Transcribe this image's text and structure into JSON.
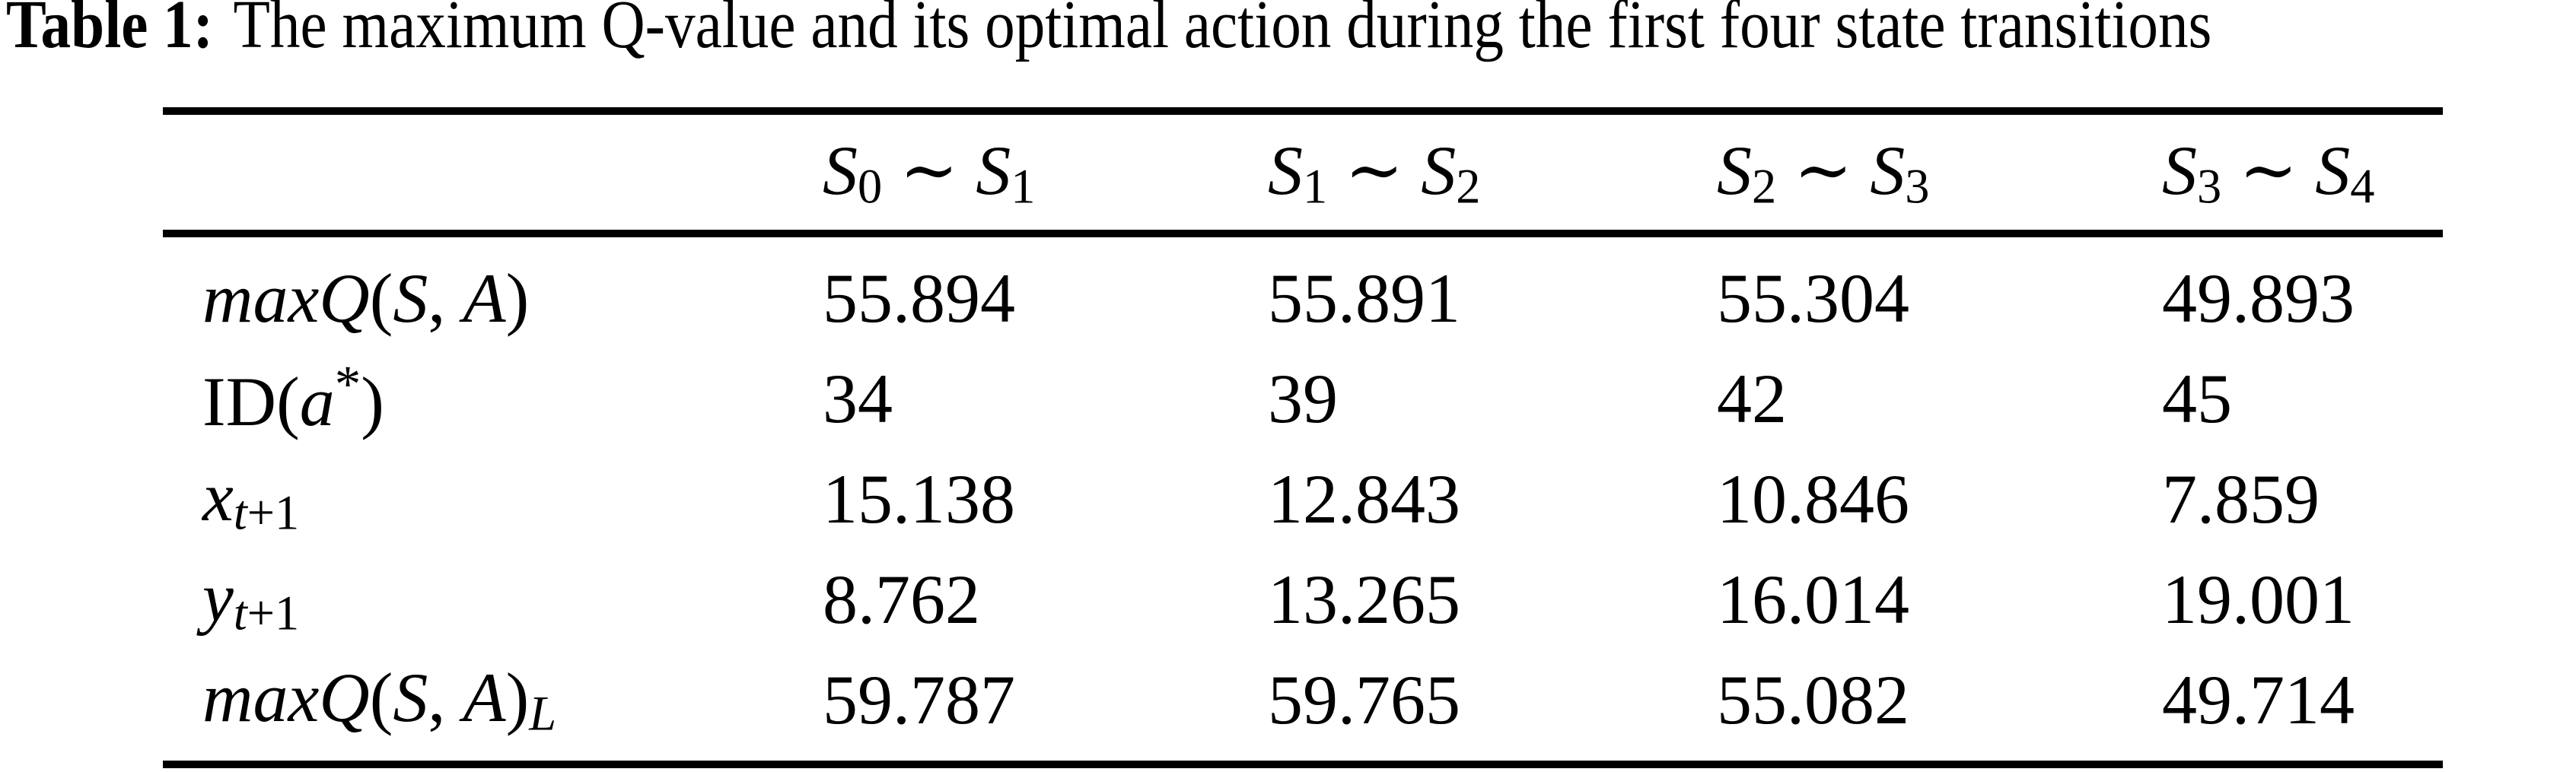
{
  "colors": {
    "text": "#000000",
    "background": "#ffffff",
    "rule": "#000000"
  },
  "caption": {
    "label": "Table 1:",
    "text": "The maximum Q-value and its optimal action during the first four state transitions"
  },
  "table": {
    "corner": "",
    "headers": [
      {
        "segments": [
          {
            "t": "S",
            "i": true
          },
          {
            "t": "0",
            "sub": true
          },
          {
            "t": " ∼ "
          },
          {
            "t": "S",
            "i": true
          },
          {
            "t": "1",
            "sub": true
          }
        ]
      },
      {
        "segments": [
          {
            "t": "S",
            "i": true
          },
          {
            "t": "1",
            "sub": true
          },
          {
            "t": " ∼ "
          },
          {
            "t": "S",
            "i": true
          },
          {
            "t": "2",
            "sub": true
          }
        ]
      },
      {
        "segments": [
          {
            "t": "S",
            "i": true
          },
          {
            "t": "2",
            "sub": true
          },
          {
            "t": " ∼ "
          },
          {
            "t": "S",
            "i": true
          },
          {
            "t": "3",
            "sub": true
          }
        ]
      },
      {
        "segments": [
          {
            "t": "S",
            "i": true
          },
          {
            "t": "3",
            "sub": true
          },
          {
            "t": " ∼ "
          },
          {
            "t": "S",
            "i": true
          },
          {
            "t": "4",
            "sub": true
          }
        ]
      }
    ],
    "rows": [
      {
        "segments": [
          {
            "t": "maxQ",
            "i": true
          },
          {
            "t": "("
          },
          {
            "t": "S",
            "i": true
          },
          {
            "t": ", "
          },
          {
            "t": "A",
            "i": true
          },
          {
            "t": ")"
          }
        ],
        "values": [
          "55.894",
          "55.891",
          "55.304",
          "49.893"
        ]
      },
      {
        "segments": [
          {
            "t": "ID"
          },
          {
            "t": "("
          },
          {
            "t": "a",
            "i": true
          },
          {
            "t": "*",
            "sup": true
          },
          {
            "t": ")"
          }
        ],
        "values": [
          "34",
          "39",
          "42",
          "45"
        ]
      },
      {
        "segments": [
          {
            "t": "x",
            "i": true
          },
          {
            "t": "t",
            "i": true,
            "sub": true
          },
          {
            "t": "+1",
            "sub": true
          }
        ],
        "values": [
          "15.138",
          "12.843",
          "10.846",
          "7.859"
        ]
      },
      {
        "segments": [
          {
            "t": "y",
            "i": true
          },
          {
            "t": "t",
            "i": true,
            "sub": true
          },
          {
            "t": "+1",
            "sub": true
          }
        ],
        "values": [
          "8.762",
          "13.265",
          "16.014",
          "19.001"
        ]
      },
      {
        "segments": [
          {
            "t": "maxQ",
            "i": true
          },
          {
            "t": "("
          },
          {
            "t": "S",
            "i": true
          },
          {
            "t": ", "
          },
          {
            "t": "A",
            "i": true
          },
          {
            "t": ")"
          },
          {
            "t": "L",
            "i": true,
            "sub": true
          }
        ],
        "values": [
          "59.787",
          "59.765",
          "55.082",
          "49.714"
        ]
      }
    ]
  }
}
